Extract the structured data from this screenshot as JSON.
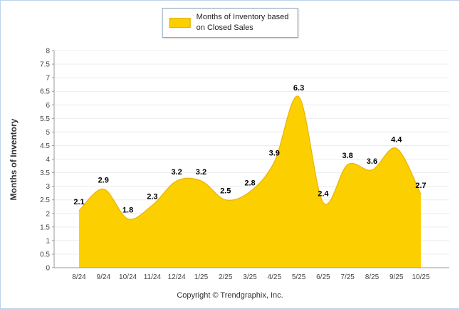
{
  "legend": {
    "label_line1": "Months of Inventory based",
    "label_line2": "on Closed Sales"
  },
  "y_axis_title": "Months of Inventory",
  "footer": {
    "copyright": "Copyright © Trendgraphix, Inc."
  },
  "colors": {
    "area_fill": "#FCCF00",
    "area_stroke": "#E8B500",
    "grid": "#ECECEC",
    "axis": "#9A9A9A",
    "tick_text": "#444444",
    "data_label": "#000000",
    "legend_border": "#8FA6BD",
    "frame_border": "#BDD3EA"
  },
  "chart_data": {
    "type": "area",
    "series_name": "Months of Inventory based on Closed Sales",
    "categories": [
      "8/24",
      "9/24",
      "10/24",
      "11/24",
      "12/24",
      "1/25",
      "2/25",
      "3/25",
      "4/25",
      "5/25",
      "6/25",
      "7/25",
      "8/25",
      "9/25",
      "10/25"
    ],
    "values": [
      2.1,
      2.9,
      1.8,
      2.3,
      3.2,
      3.2,
      2.5,
      2.8,
      3.9,
      6.3,
      2.4,
      3.8,
      3.6,
      4.4,
      2.7
    ],
    "title": "",
    "xlabel": "",
    "ylabel": "Months of Inventory",
    "ylim": [
      0,
      8
    ],
    "ytick_step": 0.5,
    "grid": true,
    "legend_position": "top",
    "smooth": true
  }
}
